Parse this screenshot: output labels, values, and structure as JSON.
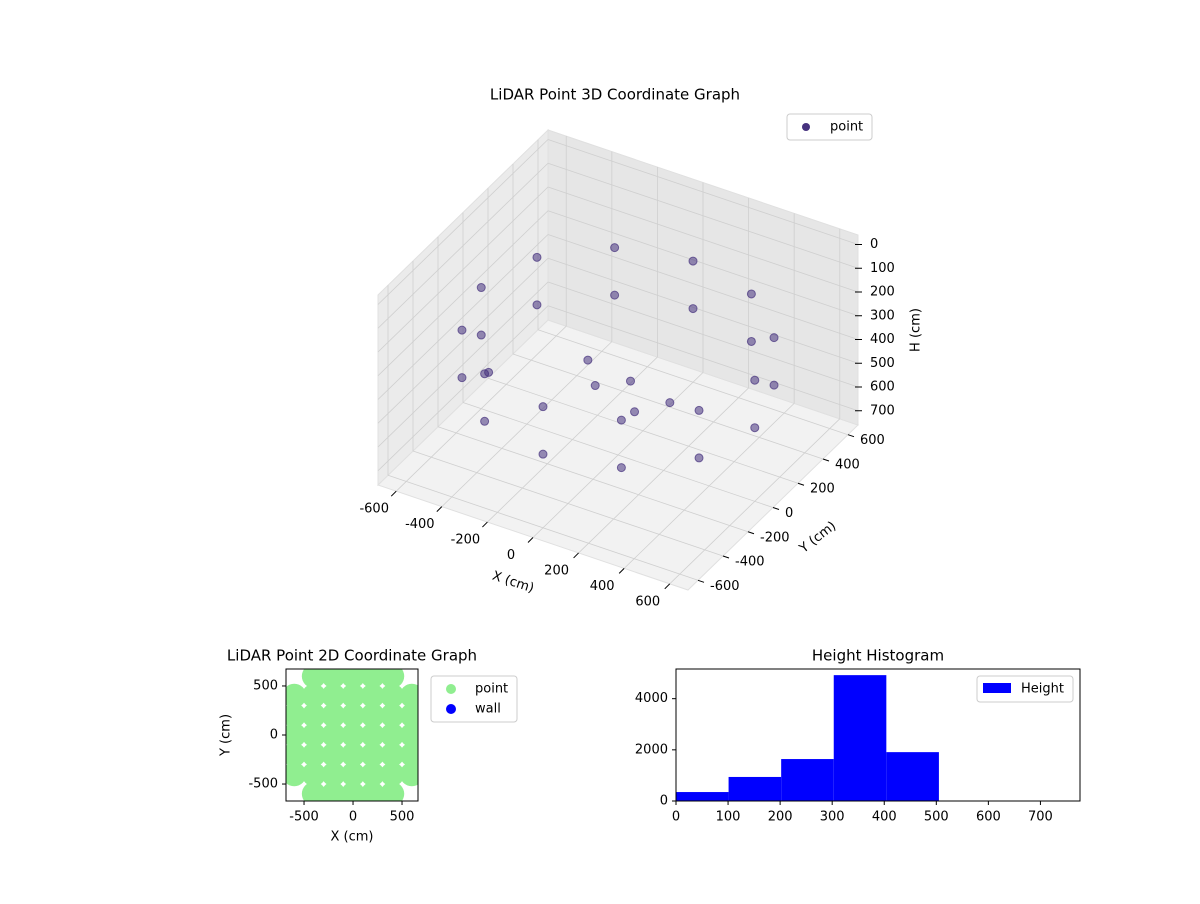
{
  "chart_data": [
    {
      "type": "scatter3d",
      "title": "LiDAR Point 3D Coordinate Graph",
      "x_label": "X (cm)",
      "y_label": "Y (cm)",
      "z_label": "H (cm)",
      "xlim": [
        -680,
        680
      ],
      "ylim": [
        -680,
        680
      ],
      "zlim": [
        -40,
        760
      ],
      "z_inverted": true,
      "xticks": [
        -600,
        -400,
        -200,
        0,
        200,
        400,
        600
      ],
      "yticks": [
        -600,
        -400,
        -200,
        0,
        200,
        400,
        600
      ],
      "zticks": [
        0,
        100,
        200,
        300,
        400,
        500,
        600,
        700
      ],
      "legend": "upper right",
      "series": [
        {
          "name": "point",
          "color": "#46327e",
          "x": [
            600,
            520,
            300,
            0,
            -300,
            -520,
            -600,
            -520,
            -300,
            0,
            300,
            520,
            600,
            520,
            300,
            0,
            -300,
            -520,
            -600,
            -520,
            -300,
            0,
            300,
            520,
            -100,
            0,
            100,
            200,
            -50,
            -650
          ],
          "y": [
            0,
            300,
            520,
            600,
            520,
            300,
            0,
            -300,
            -520,
            -600,
            -520,
            -300,
            0,
            300,
            520,
            600,
            520,
            300,
            0,
            -300,
            -520,
            -600,
            -520,
            -300,
            0,
            100,
            -50,
            50,
            -150,
            150
          ],
          "z": [
            250,
            250,
            250,
            250,
            250,
            250,
            250,
            250,
            250,
            250,
            250,
            250,
            450,
            450,
            450,
            450,
            450,
            450,
            450,
            450,
            450,
            450,
            450,
            450,
            500,
            500,
            520,
            500,
            300,
            700
          ]
        }
      ]
    },
    {
      "type": "scatter",
      "title": "LiDAR Point 2D Coordinate Graph",
      "x_label": "X (cm)",
      "y_label": "Y (cm)",
      "xlim": [
        -684,
        663
      ],
      "ylim": [
        -673,
        673
      ],
      "xticks": [
        -500,
        0,
        500
      ],
      "yticks": [
        -500,
        0,
        500
      ],
      "legend": "outside right",
      "series": [
        {
          "name": "point",
          "color": "#90ee90",
          "x": [
            -600,
            -600,
            -600,
            -600,
            -600,
            -400,
            -400,
            -400,
            -400,
            -400,
            -400,
            -400,
            -200,
            -200,
            -200,
            -200,
            -200,
            -200,
            -200,
            0,
            0,
            0,
            0,
            0,
            0,
            0,
            200,
            200,
            200,
            200,
            200,
            200,
            200,
            400,
            400,
            400,
            400,
            400,
            400,
            400,
            600,
            600,
            600,
            600,
            600
          ],
          "y": [
            -400,
            -200,
            0,
            200,
            400,
            -600,
            -400,
            -200,
            0,
            200,
            400,
            600,
            -600,
            -400,
            -200,
            0,
            200,
            400,
            600,
            -600,
            -400,
            -200,
            0,
            200,
            400,
            600,
            -600,
            -400,
            -200,
            0,
            200,
            400,
            600,
            -600,
            -400,
            -200,
            0,
            200,
            400,
            600,
            -400,
            -200,
            0,
            200,
            400
          ]
        },
        {
          "name": "wall",
          "color": "#0000ff",
          "x": [],
          "y": []
        }
      ]
    },
    {
      "type": "histogram",
      "title": "Height Histogram",
      "xlim": [
        0,
        776
      ],
      "ylim": [
        0,
        5160
      ],
      "xticks": [
        0,
        100,
        200,
        300,
        400,
        500,
        600,
        700
      ],
      "yticks": [
        0,
        2000,
        4000
      ],
      "legend": "upper right",
      "series": [
        {
          "name": "Height",
          "color": "#0000ff",
          "bins": [
            0,
            101,
            202,
            303,
            404,
            505
          ],
          "values": [
            350,
            940,
            1640,
            4920,
            1910
          ]
        }
      ]
    }
  ]
}
